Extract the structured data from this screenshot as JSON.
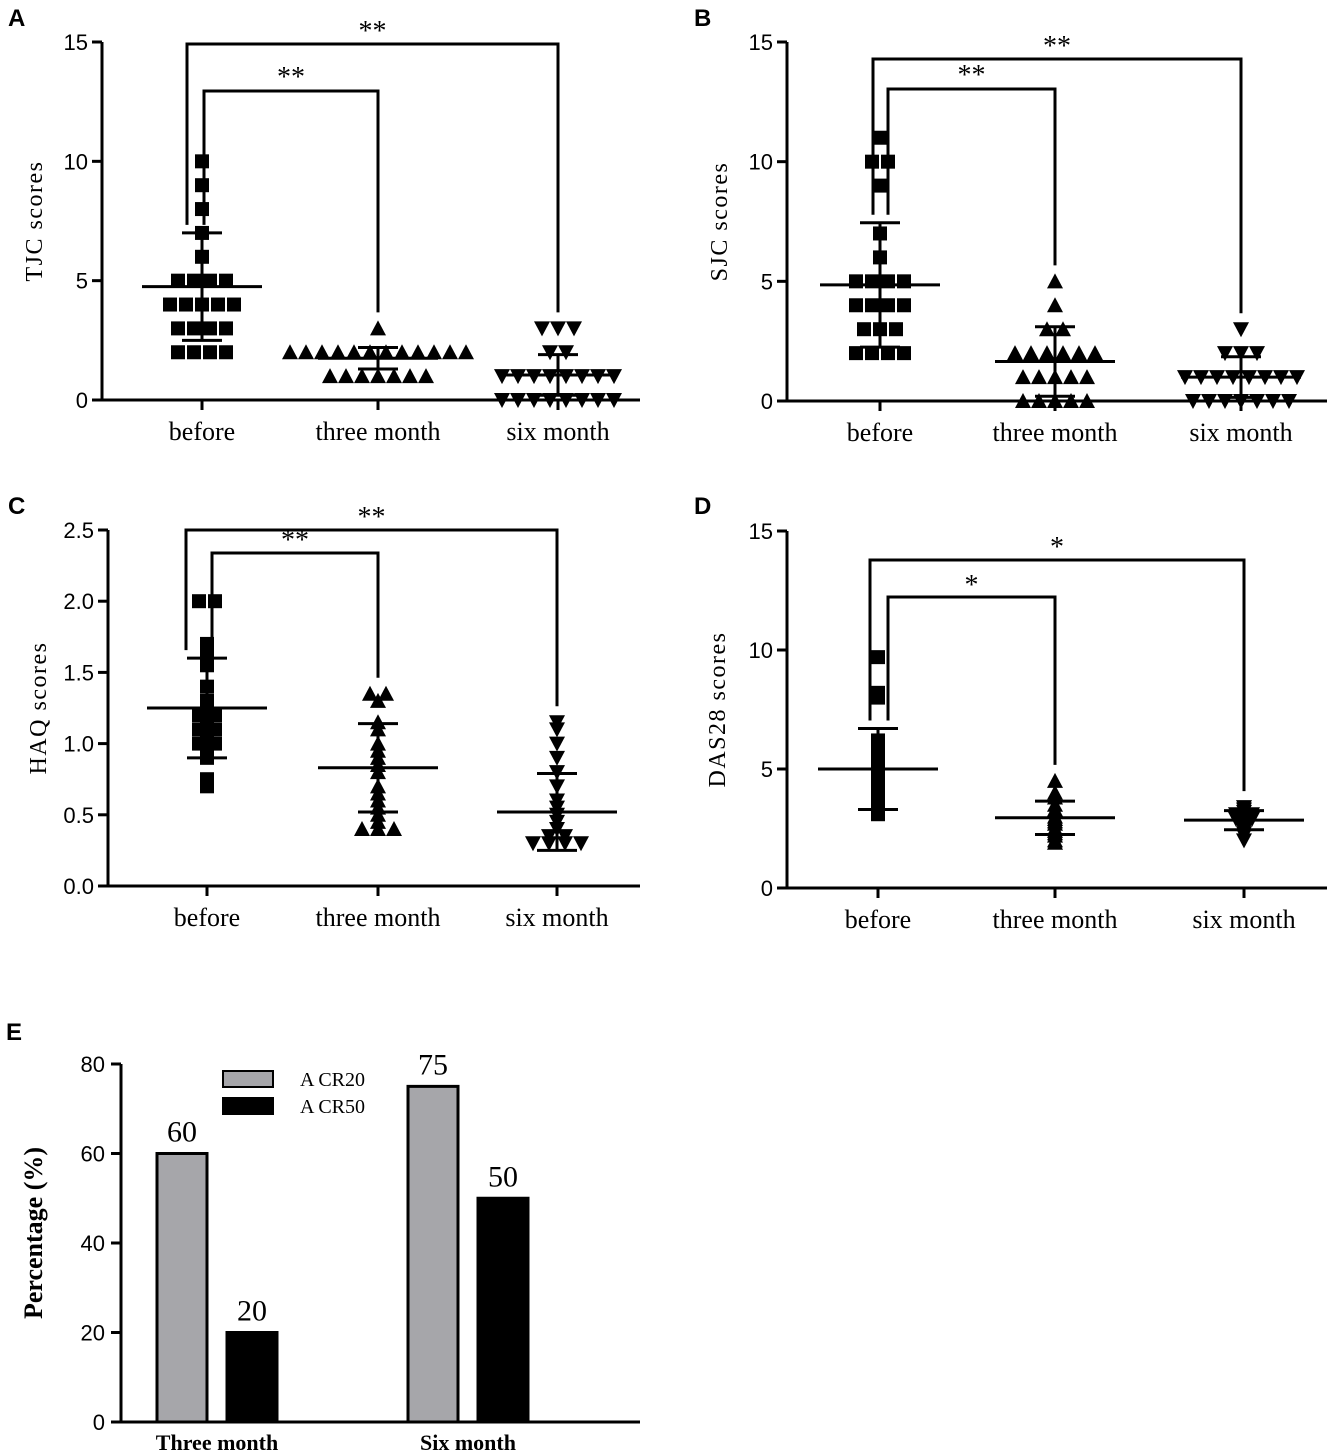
{
  "chart_data": [
    {
      "panel": "A",
      "type": "scatter",
      "ylabel": "TJC scores",
      "ylim": [
        0,
        15
      ],
      "yticks": [
        "0",
        "5",
        "10",
        "15"
      ],
      "categories": [
        "before",
        "three month",
        "six month"
      ],
      "markers": [
        "square",
        "triangle-up",
        "triangle-down"
      ],
      "points": [
        [
          10,
          9,
          8,
          7,
          6,
          5,
          5,
          5,
          5,
          4,
          4,
          4,
          4,
          4,
          3,
          3,
          3,
          3,
          2,
          2,
          2,
          2
        ],
        [
          3,
          2,
          2,
          2,
          2,
          2,
          2,
          2,
          2,
          2,
          2,
          2,
          2,
          1,
          1,
          1,
          1,
          1,
          1,
          1
        ],
        [
          3,
          3,
          3,
          2,
          2,
          1,
          1,
          1,
          1,
          1,
          1,
          1,
          1,
          0,
          0,
          0,
          0,
          0,
          0,
          0,
          0
        ]
      ],
      "mean": [
        4.75,
        1.75,
        1.05
      ],
      "sd": [
        2.25,
        0.45,
        0.85
      ],
      "comparisons": [
        {
          "from": "before",
          "to": "three month",
          "label": "**"
        },
        {
          "from": "before",
          "to": "six month",
          "label": "**"
        }
      ]
    },
    {
      "panel": "B",
      "type": "scatter",
      "ylabel": "SJC scores",
      "ylim": [
        0,
        15
      ],
      "yticks": [
        "0",
        "5",
        "10",
        "15"
      ],
      "categories": [
        "before",
        "three month",
        "six month"
      ],
      "markers": [
        "square",
        "triangle-up",
        "triangle-down"
      ],
      "points": [
        [
          11,
          10,
          10,
          9,
          7,
          6,
          5,
          5,
          5,
          5,
          4,
          4,
          4,
          4,
          3,
          3,
          3,
          2,
          2,
          2,
          2
        ],
        [
          5,
          4,
          3,
          3,
          2,
          2,
          2,
          2,
          2,
          2,
          1,
          1,
          1,
          1,
          1,
          0,
          0,
          0,
          0,
          0
        ],
        [
          3,
          2,
          2,
          2,
          1,
          1,
          1,
          1,
          1,
          1,
          1,
          1,
          0,
          0,
          0,
          0,
          0,
          0,
          0
        ]
      ],
      "mean": [
        4.85,
        1.65,
        1.0
      ],
      "sd": [
        2.6,
        1.45,
        0.85
      ],
      "comparisons": [
        {
          "from": "before",
          "to": "three month",
          "label": "**"
        },
        {
          "from": "before",
          "to": "six month",
          "label": "**"
        }
      ]
    },
    {
      "panel": "C",
      "type": "scatter",
      "ylabel": "HAQ scores",
      "ylim": [
        0,
        2.5
      ],
      "yticks": [
        "0.0",
        "0.5",
        "1.0",
        "1.5",
        "2.0",
        "2.5"
      ],
      "categories": [
        "before",
        "three month",
        "six month"
      ],
      "markers": [
        "square",
        "triangle-up",
        "triangle-down"
      ],
      "points": [
        [
          2.0,
          2.0,
          1.7,
          1.65,
          1.55,
          1.4,
          1.3,
          1.25,
          1.2,
          1.2,
          1.15,
          1.1,
          1.1,
          1.05,
          1.0,
          1.0,
          0.95,
          0.9,
          0.75,
          0.7
        ],
        [
          1.35,
          1.35,
          1.3,
          1.15,
          1.1,
          1.0,
          0.95,
          0.9,
          0.85,
          0.8,
          0.7,
          0.65,
          0.6,
          0.55,
          0.5,
          0.45,
          0.4,
          0.4,
          0.4
        ],
        [
          1.15,
          1.1,
          1.0,
          0.9,
          0.8,
          0.7,
          0.6,
          0.55,
          0.5,
          0.45,
          0.4,
          0.35,
          0.35,
          0.3,
          0.3,
          0.3,
          0.3
        ]
      ],
      "mean": [
        1.25,
        0.83,
        0.52
      ],
      "sd": [
        0.35,
        0.31,
        0.27
      ],
      "comparisons": [
        {
          "from": "before",
          "to": "three month",
          "label": "**"
        },
        {
          "from": "before",
          "to": "six month",
          "label": "**"
        }
      ]
    },
    {
      "panel": "D",
      "type": "scatter",
      "ylabel": "DAS28 scores",
      "ylim": [
        0,
        15
      ],
      "yticks": [
        "0",
        "5",
        "10",
        "15"
      ],
      "categories": [
        "before",
        "three month",
        "six month"
      ],
      "markers": [
        "square",
        "triangle-up",
        "triangle-down"
      ],
      "points": [
        [
          9.7,
          8.2,
          8.0,
          6.2,
          5.8,
          5.5,
          5.3,
          5.1,
          5.0,
          4.8,
          4.7,
          4.5,
          4.3,
          4.1,
          3.9,
          3.6,
          3.4,
          3.2,
          3.1
        ],
        [
          4.5,
          4.0,
          3.8,
          3.5,
          3.3,
          3.2,
          3.0,
          2.9,
          2.8,
          2.7,
          2.5,
          2.4,
          2.3,
          2.2,
          2.0,
          1.9
        ],
        [
          3.4,
          3.3,
          3.2,
          3.1,
          3.1,
          3.0,
          2.9,
          2.9,
          2.8,
          2.7,
          2.6,
          2.5,
          2.4,
          2.3,
          2.2,
          2.0
        ]
      ],
      "mean": [
        5.0,
        2.95,
        2.85
      ],
      "sd": [
        1.7,
        0.7,
        0.4
      ],
      "comparisons": [
        {
          "from": "before",
          "to": "three month",
          "label": "*"
        },
        {
          "from": "before",
          "to": "six month",
          "label": "*"
        }
      ]
    },
    {
      "panel": "E",
      "type": "bar",
      "ylabel": "Percentage (%)",
      "ylim": [
        0,
        80
      ],
      "yticks": [
        "0",
        "20",
        "40",
        "60",
        "80"
      ],
      "categories": [
        "Three month",
        "Six month"
      ],
      "series": [
        {
          "name": "A CR20",
          "values": [
            60,
            75
          ],
          "color": "#a6a6aa"
        },
        {
          "name": "A CR50",
          "values": [
            20,
            50
          ],
          "color": "#000000"
        }
      ],
      "value_labels": [
        [
          "60",
          "75"
        ],
        [
          "20",
          "50"
        ]
      ],
      "legend": "top-left"
    }
  ]
}
